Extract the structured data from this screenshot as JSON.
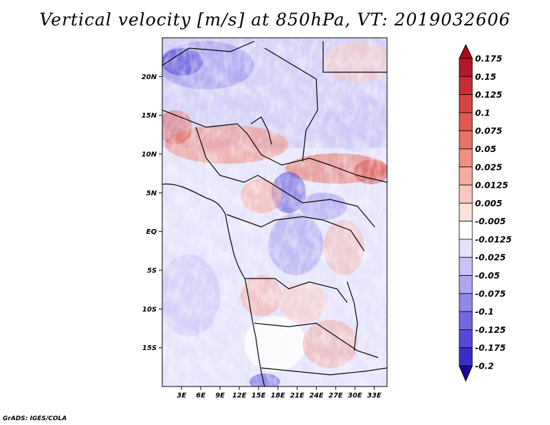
{
  "title": "Vertical velocity [m/s] at 850hPa, VT: 2019032606",
  "footer": "GrADS: IGES/COLA",
  "map": {
    "lon_range": [
      0,
      35
    ],
    "lat_range": [
      -20,
      25
    ],
    "lat_ticks": [
      {
        "lat": 20,
        "label": "20N"
      },
      {
        "lat": 15,
        "label": "15N"
      },
      {
        "lat": 10,
        "label": "10N"
      },
      {
        "lat": 5,
        "label": "5N"
      },
      {
        "lat": 0,
        "label": "EQ"
      },
      {
        "lat": -5,
        "label": "5S"
      },
      {
        "lat": -10,
        "label": "10S"
      },
      {
        "lat": -15,
        "label": "15S"
      }
    ],
    "lon_ticks": [
      {
        "lon": 3,
        "label": "3E"
      },
      {
        "lon": 6,
        "label": "6E"
      },
      {
        "lon": 9,
        "label": "9E"
      },
      {
        "lon": 12,
        "label": "12E"
      },
      {
        "lon": 15,
        "label": "15E"
      },
      {
        "lon": 18,
        "label": "18E"
      },
      {
        "lon": 21,
        "label": "21E"
      },
      {
        "lon": 24,
        "label": "24E"
      },
      {
        "lon": 27,
        "label": "27E"
      },
      {
        "lon": 30,
        "label": "30E"
      },
      {
        "lon": 33,
        "label": "33E"
      }
    ]
  },
  "colorbar": {
    "levels": [
      {
        "label": "0.175",
        "color": "#b2182b"
      },
      {
        "label": "0.15",
        "color": "#c62d35"
      },
      {
        "label": "0.125",
        "color": "#d6423f"
      },
      {
        "label": "0.1",
        "color": "#e05a50"
      },
      {
        "label": "0.075",
        "color": "#e87466"
      },
      {
        "label": "0.05",
        "color": "#f0907f"
      },
      {
        "label": "0.025",
        "color": "#f6aba0"
      },
      {
        "label": "0.0125",
        "color": "#fac8c0"
      },
      {
        "label": "0.005",
        "color": "#fde2dc"
      },
      {
        "label": "-0.005",
        "color": "#ffffff"
      },
      {
        "label": "-0.0125",
        "color": "#e4e2fb"
      },
      {
        "label": "-0.025",
        "color": "#c9c4f6"
      },
      {
        "label": "-0.05",
        "color": "#aea6f0"
      },
      {
        "label": "-0.075",
        "color": "#9087ea"
      },
      {
        "label": "-0.1",
        "color": "#7268e2"
      },
      {
        "label": "-0.125",
        "color": "#5449d8"
      },
      {
        "label": "-0.175",
        "color": "#3a2ec8"
      },
      {
        "label": "-0.2",
        "color": "#2416b0"
      }
    ],
    "top_color": "#a50f15",
    "bottom_color": "#1a0a9a"
  }
}
